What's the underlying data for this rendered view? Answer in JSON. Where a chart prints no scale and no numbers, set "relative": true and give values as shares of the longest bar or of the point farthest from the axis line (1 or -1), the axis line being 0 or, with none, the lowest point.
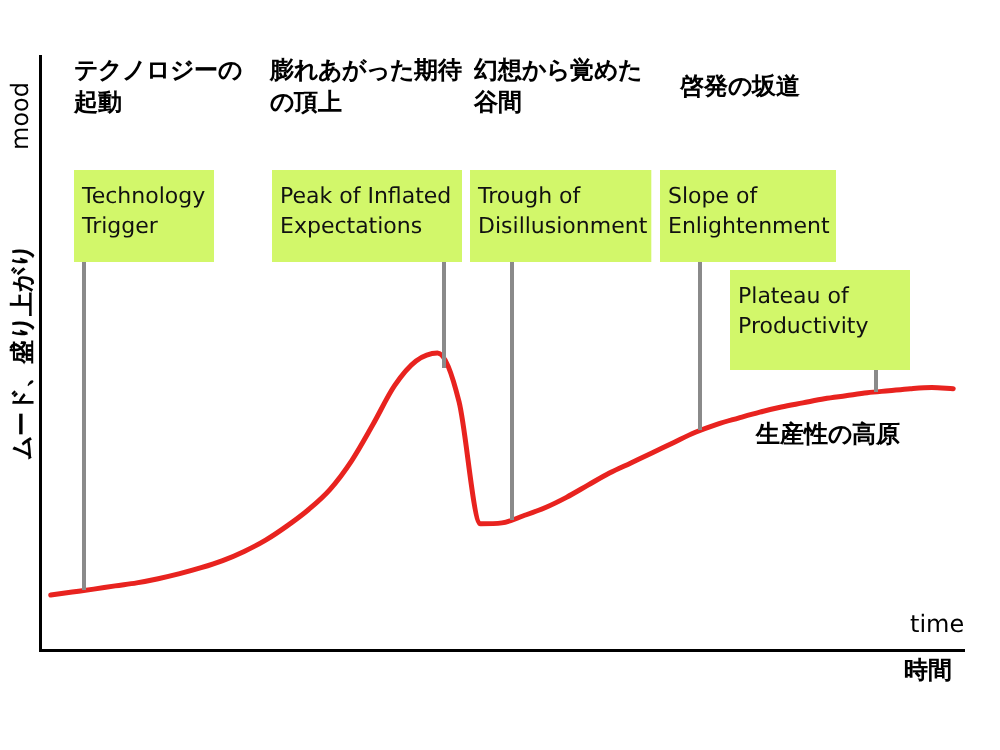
{
  "chart_data": {
    "type": "line",
    "relative": true,
    "grid": false,
    "legend": false,
    "marker": "none",
    "line_style": "solid",
    "xlabel": "time",
    "ylabel": "ムード、盛り上がり",
    "categories": [
      null,
      null,
      null,
      null,
      null,
      null,
      null,
      null,
      null,
      null,
      null,
      null,
      null,
      null,
      null,
      null,
      null,
      null,
      null,
      null,
      null,
      null,
      null,
      null,
      null,
      null,
      null,
      null,
      null,
      null,
      null,
      null,
      null,
      null,
      null,
      null,
      null,
      null,
      null,
      null,
      null,
      null,
      null
    ],
    "series": [
      {
        "color": "#e8231f",
        "values": [
          0.185,
          0.195,
          0.205,
          0.216,
          0.226,
          0.24,
          0.257,
          0.277,
          0.301,
          0.332,
          0.37,
          0.418,
          0.473,
          0.541,
          0.637,
          0.76,
          0.89,
          0.973,
          1,
          0.836,
          0.425,
          0.428,
          0.452,
          0.479,
          0.514,
          0.555,
          0.596,
          0.63,
          0.664,
          0.699,
          0.733,
          0.76,
          0.781,
          0.801,
          0.818,
          0.832,
          0.846,
          0.856,
          0.866,
          0.873,
          0.88,
          0.884,
          0.88
        ]
      }
    ],
    "annotations": [
      "mood",
      "時間",
      "テクノロジーの起動",
      "Technology\nTrigger",
      "膨れあがった期待の頂上",
      "Peak of Inflated\nExpectations",
      "幻想から覚めた谷間",
      "Trough of\nDisillusionment",
      "啓発の坂道",
      "Slope of\nEnlightenment",
      "生産性の高原",
      "Plateau of\nProductivity"
    ]
  }
}
